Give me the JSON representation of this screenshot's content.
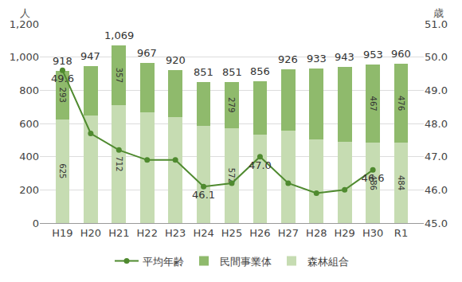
{
  "chart_data": {
    "type": "bar",
    "stacked": true,
    "grid": true,
    "legend": "bottom",
    "data_labels": true,
    "ylabel": "人",
    "y2label": "歳",
    "categories": [
      "H19",
      "H20",
      "H21",
      "H22",
      "H23",
      "H24",
      "H25",
      "H26",
      "H27",
      "H28",
      "H29",
      "H30",
      "R1"
    ],
    "total_labels": [
      918,
      947,
      1069,
      967,
      920,
      851,
      851,
      856,
      926,
      933,
      943,
      953,
      960
    ],
    "total_value_labels": [
      "918",
      "947",
      "1,069",
      "967",
      "920",
      "851",
      "851",
      "856",
      "926",
      "933",
      "943",
      "953",
      "960"
    ],
    "ylim": [
      0,
      1200
    ],
    "yticks": [
      0,
      200,
      400,
      600,
      800,
      {
        "value": 1000,
        "label": "1,000"
      },
      {
        "value": 1200,
        "label": "1,200"
      }
    ],
    "y2lim": [
      45,
      51
    ],
    "y2ticks": [
      {
        "value": 45,
        "label": "45.0"
      },
      {
        "value": 46,
        "label": "46.0"
      },
      {
        "value": 47,
        "label": "47.0"
      },
      {
        "value": 48,
        "label": "48.0"
      },
      {
        "value": 49,
        "label": "49.0"
      },
      {
        "value": 50,
        "label": "50.0"
      },
      {
        "value": 51,
        "label": "51.0"
      }
    ],
    "series": [
      {
        "name": "森林組合",
        "type": "bar",
        "color": "#c6dcb2",
        "values": [
          625,
          650,
          712,
          665,
          640,
          585,
          572,
          535,
          555,
          505,
          490,
          486,
          484
        ],
        "value_labels": [
          "625",
          null,
          "712",
          null,
          null,
          null,
          "572",
          null,
          null,
          null,
          null,
          "486",
          "484"
        ]
      },
      {
        "name": "民間事業体",
        "type": "bar",
        "color": "#8fba6c",
        "values": [
          293,
          297,
          357,
          302,
          280,
          266,
          279,
          321,
          371,
          428,
          453,
          467,
          476
        ],
        "value_labels": [
          "293",
          null,
          "357",
          null,
          null,
          null,
          "279",
          null,
          null,
          null,
          null,
          "467",
          "476"
        ]
      },
      {
        "name": "平均年齢",
        "type": "line",
        "axis": "y2",
        "color": "#4f8a2f",
        "marker": "circle",
        "values": [
          49.6,
          47.7,
          47.2,
          46.9,
          46.9,
          46.1,
          46.2,
          47.0,
          46.2,
          45.9,
          46.0,
          46.6,
          null
        ],
        "value_labels": [
          "49.6",
          null,
          null,
          null,
          null,
          "46.1",
          null,
          "47.0",
          null,
          null,
          null,
          "46.6",
          null
        ]
      }
    ]
  }
}
